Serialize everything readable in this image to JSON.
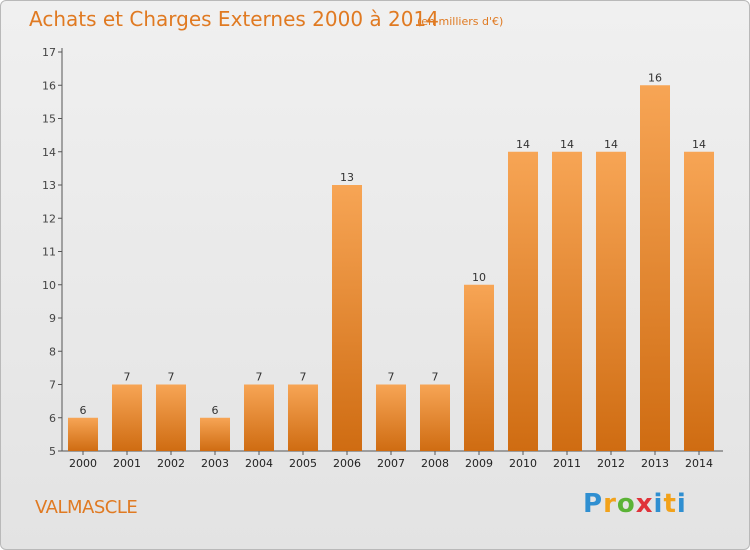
{
  "header": {
    "title": "Achats et Charges Externes 2000 à 2014",
    "unit": "(en milliers d'€)"
  },
  "footer": {
    "place": "VALMASCLE",
    "logo_text": "Proxiti"
  },
  "colors": {
    "accent": "#e07a22",
    "bar_top": "#f7a555",
    "bar_bottom": "#cf6c12"
  },
  "chart_data": {
    "type": "bar",
    "title": "Achats et Charges Externes 2000 à 2014",
    "subtitle": "(en milliers d'€)",
    "categories": [
      "2000",
      "2001",
      "2002",
      "2003",
      "2004",
      "2005",
      "2006",
      "2007",
      "2008",
      "2009",
      "2010",
      "2011",
      "2012",
      "2013",
      "2014"
    ],
    "values": [
      6,
      7,
      7,
      6,
      7,
      7,
      13,
      7,
      7,
      10,
      14,
      14,
      14,
      16,
      14
    ],
    "ylim": [
      5,
      17
    ],
    "yticks": [
      5,
      6,
      7,
      8,
      9,
      10,
      11,
      12,
      13,
      14,
      15,
      16,
      17
    ],
    "grid": false,
    "xlabel": "",
    "ylabel": ""
  }
}
